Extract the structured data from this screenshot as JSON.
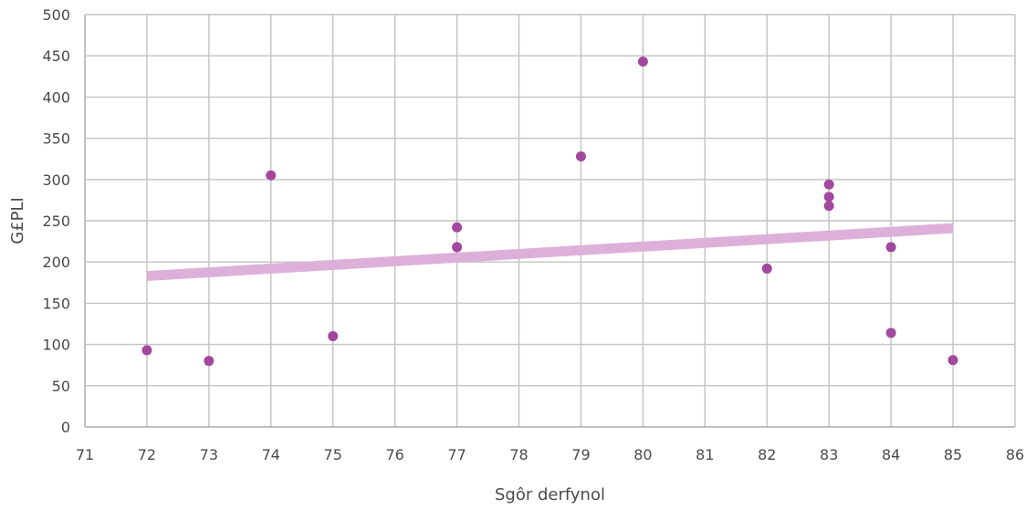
{
  "chart_data": {
    "type": "scatter",
    "title": "",
    "xlabel": "Sgôr derfynol",
    "ylabel": "G£PLI",
    "xlim": [
      71,
      86
    ],
    "ylim": [
      0,
      500
    ],
    "xticks": [
      71,
      72,
      73,
      74,
      75,
      76,
      77,
      78,
      79,
      80,
      81,
      82,
      83,
      84,
      85,
      86
    ],
    "yticks": [
      0,
      50,
      100,
      150,
      200,
      250,
      300,
      350,
      400,
      450,
      500
    ],
    "grid": true,
    "legend": "none",
    "series": [
      {
        "points": [
          {
            "x": 72,
            "y": 93
          },
          {
            "x": 73,
            "y": 80
          },
          {
            "x": 74,
            "y": 305
          },
          {
            "x": 75,
            "y": 110
          },
          {
            "x": 77,
            "y": 242
          },
          {
            "x": 77,
            "y": 218
          },
          {
            "x": 79,
            "y": 328
          },
          {
            "x": 80,
            "y": 443
          },
          {
            "x": 82,
            "y": 192
          },
          {
            "x": 83,
            "y": 294
          },
          {
            "x": 83,
            "y": 279
          },
          {
            "x": 83,
            "y": 268
          },
          {
            "x": 84,
            "y": 218
          },
          {
            "x": 84,
            "y": 114
          },
          {
            "x": 85,
            "y": 81
          }
        ]
      }
    ],
    "trendline": {
      "type": "linear",
      "start": {
        "x": 72,
        "y": 183
      },
      "end": {
        "x": 85,
        "y": 241
      }
    },
    "colors": {
      "point": "#A2479E",
      "trendline": "#DDB0DA",
      "grid": "#C2C2C2",
      "text": "#4A4A4A"
    }
  }
}
